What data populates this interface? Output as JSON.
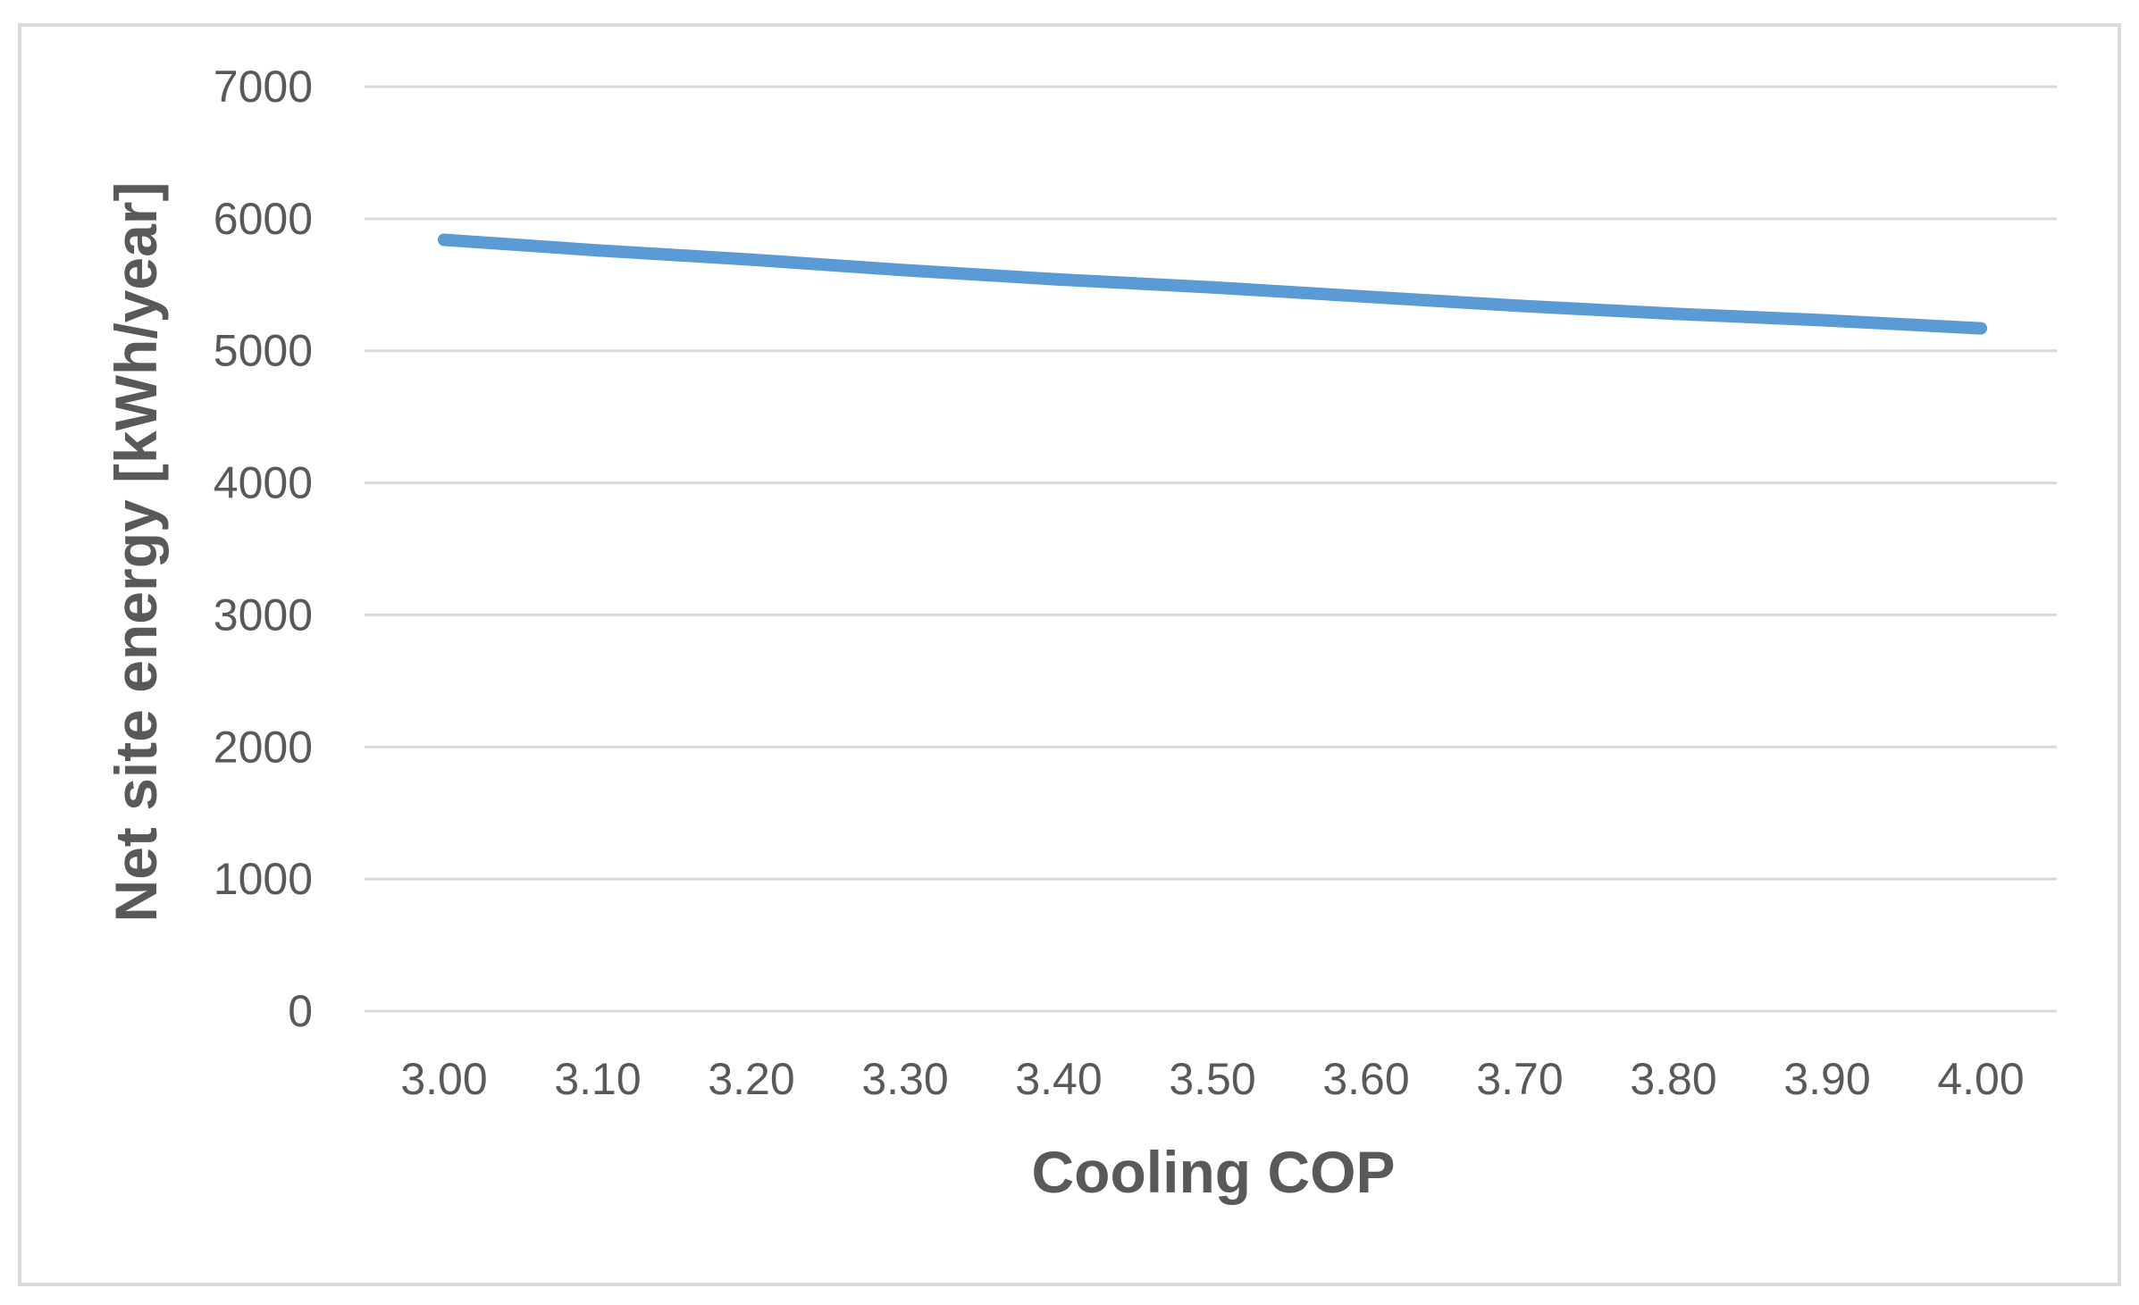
{
  "chart_data": {
    "type": "line",
    "title": "",
    "xlabel": "Cooling COP",
    "ylabel": "Net site energy [kWh/year]",
    "categories": [
      "3.00",
      "3.10",
      "3.20",
      "3.30",
      "3.40",
      "3.50",
      "3.60",
      "3.70",
      "3.80",
      "3.90",
      "4.00"
    ],
    "series": [
      {
        "name": "Net site energy",
        "values": [
          5840,
          5760,
          5690,
          5610,
          5540,
          5480,
          5410,
          5340,
          5280,
          5230,
          5170
        ],
        "color": "#5b9bd5"
      }
    ],
    "ylim": [
      0,
      7000
    ],
    "yticks": [
      "0",
      "1000",
      "2000",
      "3000",
      "4000",
      "5000",
      "6000",
      "7000"
    ],
    "grid": true,
    "legend": "none"
  },
  "colors": {
    "gridline": "#d9d9d9",
    "text": "#595959",
    "line": "#5b9bd5",
    "border": "#d9d9d9"
  }
}
